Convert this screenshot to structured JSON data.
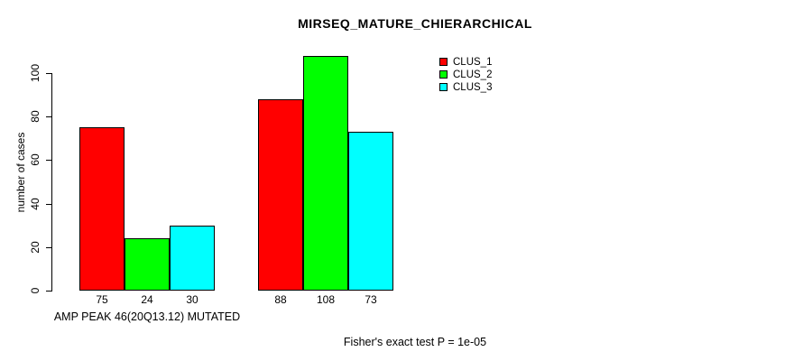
{
  "chart_data": {
    "type": "bar",
    "title": "MIRSEQ_MATURE_CHIERARCHICAL",
    "ylabel": "number of cases",
    "ylim": [
      0,
      100
    ],
    "yticks": [
      0,
      20,
      40,
      60,
      80,
      100
    ],
    "grid": false,
    "legend_position": "top-right",
    "bar_value_labels": true,
    "groups": [
      {
        "label": "AMP PEAK 46(20Q13.12) MUTATED",
        "values": [
          75,
          24,
          30
        ]
      },
      {
        "label": "",
        "values": [
          88,
          108,
          73
        ]
      }
    ],
    "series": [
      {
        "name": "CLUS_1",
        "color": "#FF0000"
      },
      {
        "name": "CLUS_2",
        "color": "#00FF00"
      },
      {
        "name": "CLUS_3",
        "color": "#00FFFF"
      }
    ],
    "footnote": "Fisher's exact test P = 1e-05"
  }
}
